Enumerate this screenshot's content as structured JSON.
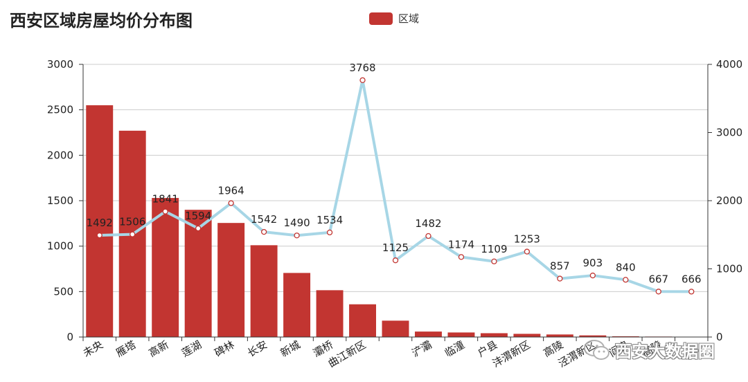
{
  "colors": {
    "bar": "#c23531",
    "line": "#a7d6e6",
    "point_stroke": "#c23531",
    "axis": "#333333",
    "grid": "#cccccc"
  },
  "header": {
    "title": "西安区域房屋均价分布图",
    "legend_label": "区域"
  },
  "watermark": {
    "text": "西安大数据圈",
    "icon": "wechat-icon"
  },
  "chart_data": {
    "type": "bar",
    "title": "西安区域房屋均价分布图",
    "categories": [
      "未央",
      "雁塔",
      "高新",
      "莲湖",
      "碑林",
      "长安",
      "新城",
      "灞桥",
      "曲江新区",
      "",
      "浐灞",
      "临潼",
      "户县",
      "沣渭新区",
      "高陵",
      "泾渭新区",
      "阎良",
      "高陵",
      "蓝田"
    ],
    "axis_labels": [
      "未央",
      "雁塔",
      "高新",
      "莲湖",
      "碑林",
      "长安",
      "新城",
      "灞桥",
      "曲江新区",
      "浐灞",
      "临潼",
      "户县",
      "沣渭新区",
      "高陵",
      "泾渭新区",
      "阎良",
      "高陵"
    ],
    "bar_series": {
      "name": "区域",
      "values": [
        2550,
        2270,
        1530,
        1400,
        1255,
        1010,
        705,
        515,
        360,
        180,
        60,
        50,
        42,
        35,
        28,
        18,
        8,
        5,
        2
      ]
    },
    "line_series": {
      "values": [
        1492,
        1506,
        1841,
        1594,
        1964,
        1542,
        1490,
        1534,
        3768,
        1125,
        1482,
        1174,
        1109,
        1253,
        857,
        903,
        840,
        667,
        666
      ]
    },
    "y_left": {
      "min": 0,
      "max": 3000,
      "ticks": [
        0,
        500,
        1000,
        1500,
        2000,
        2500,
        3000
      ]
    },
    "y_right": {
      "min": 0,
      "max": 4000,
      "ticks": [
        0,
        1000,
        2000,
        3000,
        4000
      ]
    },
    "grid": true,
    "legend_position": "top-center"
  }
}
